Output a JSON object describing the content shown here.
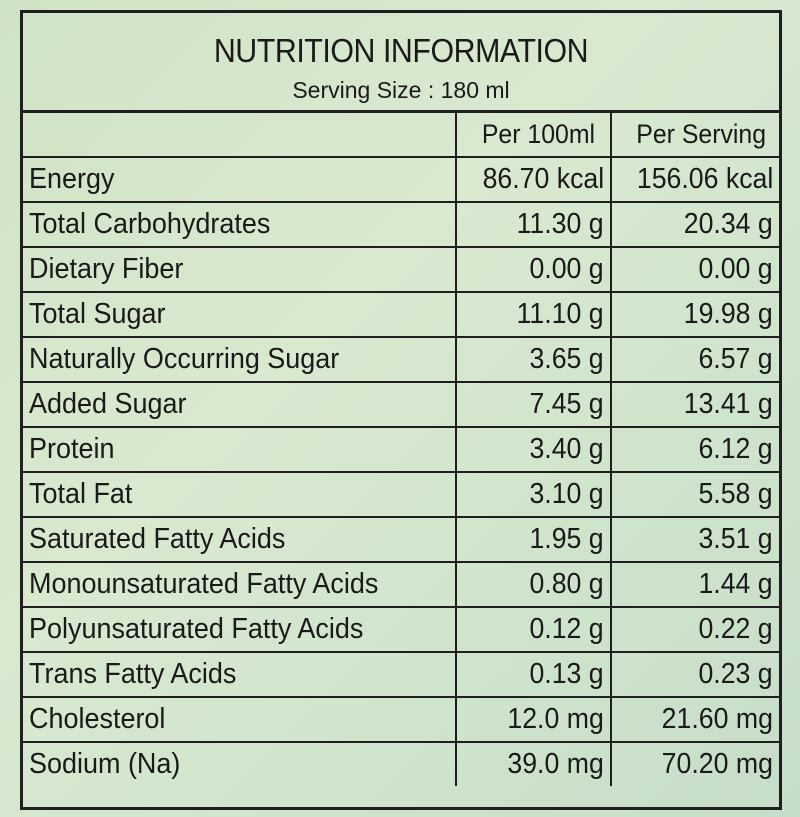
{
  "title": "NUTRITION INFORMATION",
  "serving_size": "Serving Size : 180 ml",
  "columns": {
    "nutrient": "",
    "per_100ml": "Per 100ml",
    "per_serving": "Per Serving"
  },
  "rows": [
    {
      "nutrient": "Energy",
      "per_100ml": "86.70 kcal",
      "per_serving": "156.06 kcal"
    },
    {
      "nutrient": "Total Carbohydrates",
      "per_100ml": "11.30 g",
      "per_serving": "20.34 g"
    },
    {
      "nutrient": "Dietary Fiber",
      "per_100ml": "0.00 g",
      "per_serving": "0.00 g"
    },
    {
      "nutrient": "Total Sugar",
      "per_100ml": "11.10 g",
      "per_serving": "19.98 g"
    },
    {
      "nutrient": "Naturally Occurring Sugar",
      "per_100ml": "3.65 g",
      "per_serving": "6.57 g"
    },
    {
      "nutrient": "Added Sugar",
      "per_100ml": "7.45 g",
      "per_serving": "13.41 g"
    },
    {
      "nutrient": "Protein",
      "per_100ml": "3.40 g",
      "per_serving": "6.12 g"
    },
    {
      "nutrient": "Total Fat",
      "per_100ml": "3.10 g",
      "per_serving": "5.58 g"
    },
    {
      "nutrient": "Saturated Fatty Acids",
      "per_100ml": "1.95 g",
      "per_serving": "3.51 g"
    },
    {
      "nutrient": "Monounsaturated Fatty Acids",
      "per_100ml": "0.80 g",
      "per_serving": "1.44 g"
    },
    {
      "nutrient": "Polyunsaturated Fatty Acids",
      "per_100ml": "0.12 g",
      "per_serving": "0.22 g"
    },
    {
      "nutrient": "Trans Fatty Acids",
      "per_100ml": "0.13 g",
      "per_serving": "0.23 g"
    },
    {
      "nutrient": "Cholesterol",
      "per_100ml": "12.0 mg",
      "per_serving": "21.60 mg"
    },
    {
      "nutrient": "Sodium (Na)",
      "per_100ml": "39.0 mg",
      "per_serving": "70.20 mg"
    }
  ]
}
